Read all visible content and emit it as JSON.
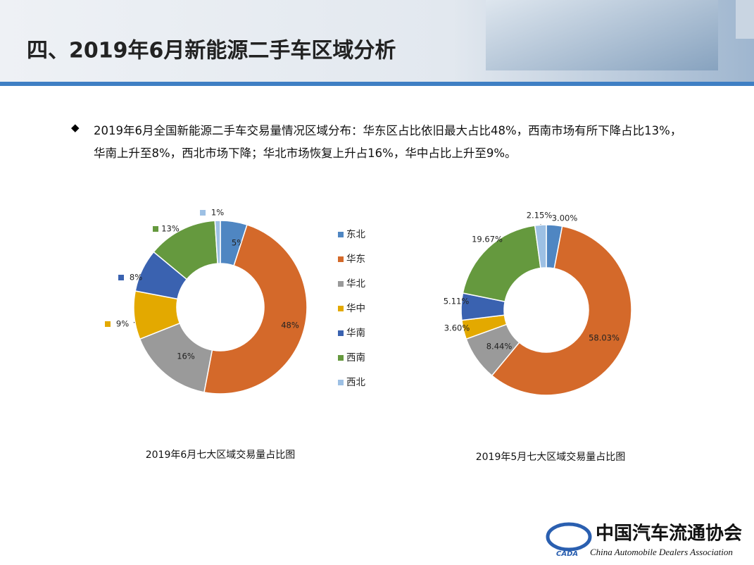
{
  "header": {
    "title": "四、2019年6月新能源二手车区域分析"
  },
  "bullet": {
    "text": "2019年6月全国新能源二手车交易量情况区域分布：华东区占比依旧最大占比48%，西南市场有所下降占比13%，华南上升至8%，西北市场下降；华北市场恢复上升占16%，华中占比上升至9%。"
  },
  "chart_data": [
    {
      "type": "donut",
      "title": "2019年6月七大区域交易量占比图",
      "categories": [
        "东北",
        "华东",
        "华北",
        "华中",
        "华南",
        "西南",
        "西北"
      ],
      "values": [
        5,
        48,
        16,
        9,
        8,
        13,
        1
      ],
      "value_labels": [
        "5%",
        "48%",
        "16%",
        "9%",
        "8%",
        "13%",
        "1%"
      ],
      "colors": [
        "#4f86c2",
        "#d4692a",
        "#9a9a9a",
        "#e3a900",
        "#3a62b0",
        "#65993e",
        "#9dc0e4"
      ],
      "legend": "right"
    },
    {
      "type": "donut",
      "title": "2019年5月七大区域交易量占比图",
      "values": [
        3,
        58.03,
        8.44,
        3.6,
        5.11,
        19.67,
        2.15
      ],
      "value_labels": [
        "3.00%",
        "58.03%",
        "8.44%",
        "3.60%",
        "5.11%",
        "19.67%",
        "2.15%"
      ],
      "colors": [
        "#4f86c2",
        "#d4692a",
        "#9a9a9a",
        "#e3a900",
        "#3a62b0",
        "#65993e",
        "#9dc0e4"
      ]
    }
  ],
  "logo": {
    "name": "中国汽车流通协会",
    "english": "China Automobile Dealers Association",
    "abbr": "CADA"
  }
}
